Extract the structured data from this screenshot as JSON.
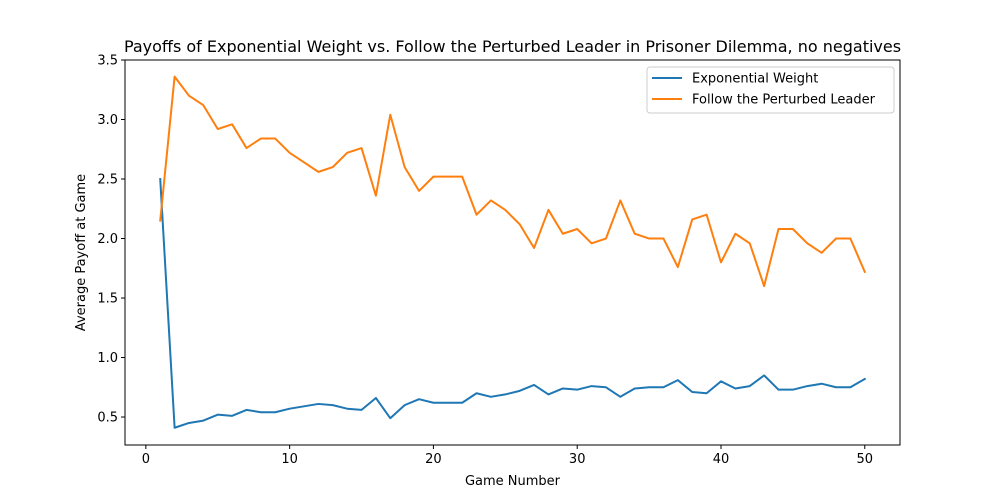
{
  "chart_data": {
    "type": "line",
    "title": "Payoffs of Exponential Weight vs. Follow the Perturbed Leader in Prisoner Dilemma, no negatives",
    "xlabel": "Game Number",
    "ylabel": "Average Payoff at Game",
    "xlim": [
      -1.45,
      52.45
    ],
    "ylim": [
      0.265,
      3.5
    ],
    "xticks": [
      0,
      10,
      20,
      30,
      40,
      50
    ],
    "yticks": [
      0.5,
      1.0,
      1.5,
      2.0,
      2.5,
      3.0,
      3.5
    ],
    "ytick_labels": [
      "0.5",
      "1.0",
      "1.5",
      "2.0",
      "2.5",
      "3.0",
      "3.5"
    ],
    "grid": false,
    "legend_position": "upper right",
    "x": [
      1,
      2,
      3,
      4,
      5,
      6,
      7,
      8,
      9,
      10,
      11,
      12,
      13,
      14,
      15,
      16,
      17,
      18,
      19,
      20,
      21,
      22,
      23,
      24,
      25,
      26,
      27,
      28,
      29,
      30,
      31,
      32,
      33,
      34,
      35,
      36,
      37,
      38,
      39,
      40,
      41,
      42,
      43,
      44,
      45,
      46,
      47,
      48,
      49,
      50
    ],
    "series": [
      {
        "name": "Exponential Weight",
        "color": "#1f77b4",
        "values": [
          2.5,
          0.41,
          0.45,
          0.47,
          0.52,
          0.51,
          0.56,
          0.54,
          0.54,
          0.57,
          0.59,
          0.61,
          0.6,
          0.57,
          0.56,
          0.66,
          0.49,
          0.6,
          0.65,
          0.62,
          0.62,
          0.62,
          0.7,
          0.67,
          0.69,
          0.72,
          0.77,
          0.69,
          0.74,
          0.73,
          0.76,
          0.75,
          0.67,
          0.74,
          0.75,
          0.75,
          0.81,
          0.71,
          0.7,
          0.8,
          0.74,
          0.76,
          0.85,
          0.73,
          0.73,
          0.76,
          0.78,
          0.75,
          0.75,
          0.82
        ]
      },
      {
        "name": "Follow the Perturbed Leader",
        "color": "#ff7f0e",
        "values": [
          2.15,
          3.36,
          3.2,
          3.12,
          2.92,
          2.96,
          2.76,
          2.84,
          2.84,
          2.72,
          2.64,
          2.56,
          2.6,
          2.72,
          2.76,
          2.36,
          3.04,
          2.6,
          2.4,
          2.52,
          2.52,
          2.52,
          2.2,
          2.32,
          2.24,
          2.12,
          1.92,
          2.24,
          2.04,
          2.08,
          1.96,
          2.0,
          2.32,
          2.04,
          2.0,
          2.0,
          1.76,
          2.16,
          2.2,
          1.8,
          2.04,
          1.96,
          1.6,
          2.08,
          2.08,
          1.96,
          1.88,
          2.0,
          2.0,
          1.72
        ]
      }
    ]
  }
}
